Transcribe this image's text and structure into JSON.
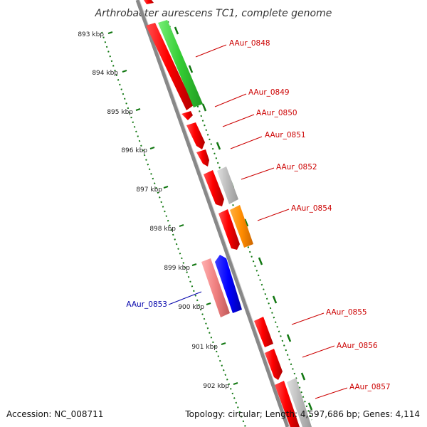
{
  "title": "Arthrobacter aurescens TC1, complete genome",
  "accession": "Accession: NC_008711",
  "topology": "Topology: circular; Length: 4,597,686 bp; Genes: 4,114",
  "colors": {
    "forward_gene": "#ff0000",
    "reverse_gene": "#0000ff",
    "pseudo_reverse": "#f08080",
    "green_gene": "#33cc33",
    "gray_gene": "#bbbbbb",
    "orange_gene": "#ff8c00",
    "backbone": "#888888",
    "ruler": "#117711",
    "forward_label": "#cc0000",
    "reverse_label": "#0000aa"
  },
  "ruler_ticks": [
    "893 kbp",
    "894 kbp",
    "895 kbp",
    "896 kbp",
    "897 kbp",
    "898 kbp",
    "899 kbp",
    "900 kbp",
    "901 kbp",
    "902 kbp"
  ],
  "gene_labels": [
    {
      "name": "AAur_0848",
      "strand": "forward"
    },
    {
      "name": "AAur_0849",
      "strand": "forward"
    },
    {
      "name": "AAur_0850",
      "strand": "forward"
    },
    {
      "name": "AAur_0851",
      "strand": "forward"
    },
    {
      "name": "AAur_0852",
      "strand": "forward"
    },
    {
      "name": "AAur_0854",
      "strand": "forward"
    },
    {
      "name": "AAur_0853",
      "strand": "reverse"
    },
    {
      "name": "AAur_0855",
      "strand": "forward"
    },
    {
      "name": "AAur_0856",
      "strand": "forward"
    },
    {
      "name": "AAur_0857",
      "strand": "forward"
    }
  ]
}
